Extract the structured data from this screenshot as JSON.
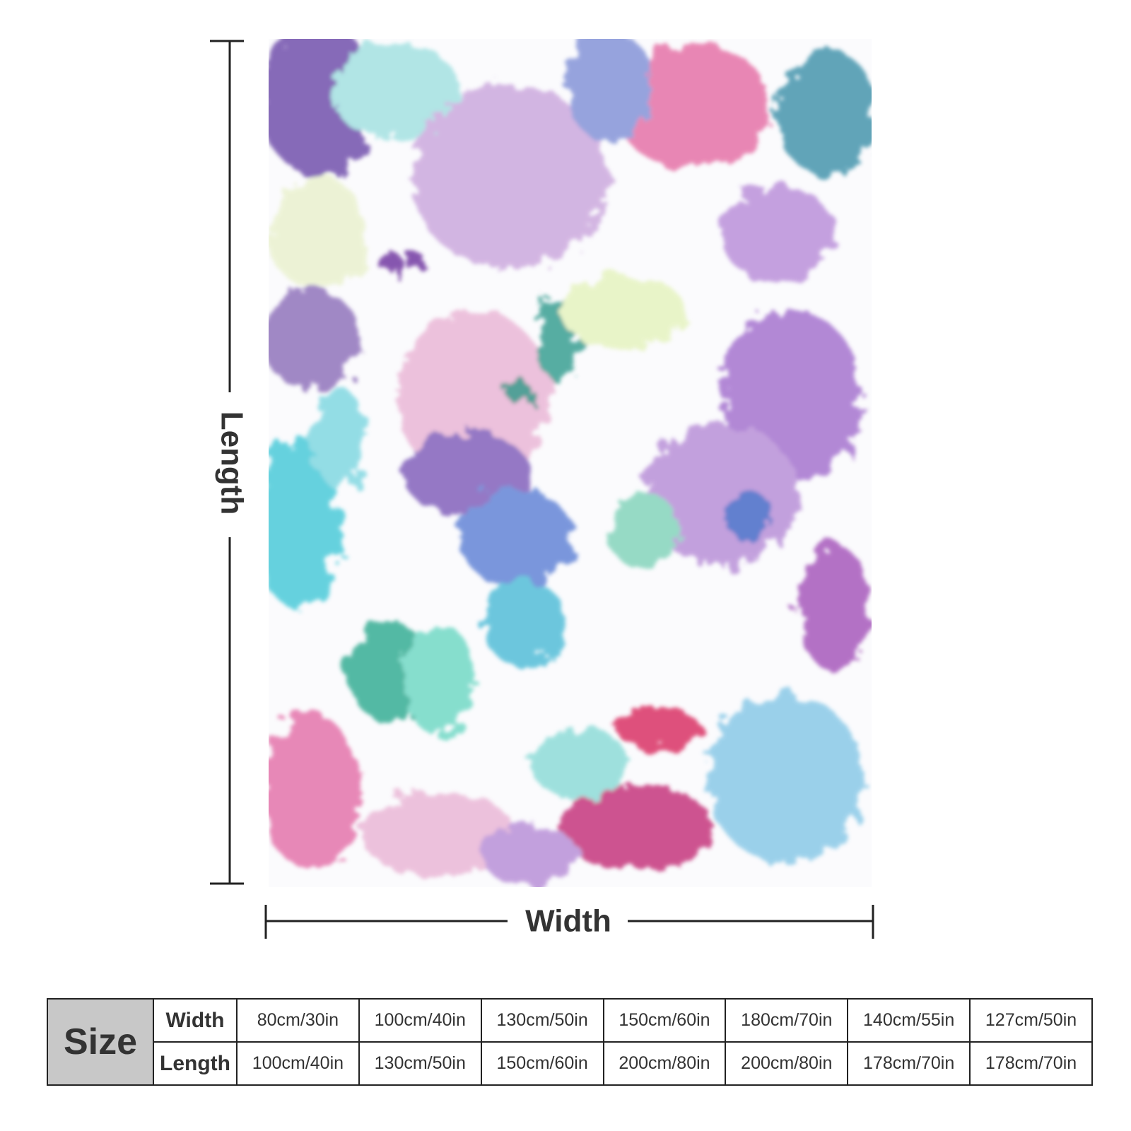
{
  "dimension_labels": {
    "length": "Length",
    "width": "Width"
  },
  "size_table": {
    "header": "Size",
    "rows": [
      {
        "label": "Width",
        "cells": [
          "80cm/30in",
          "100cm/40in",
          "130cm/50in",
          "150cm/60in",
          "180cm/70in",
          "140cm/55in",
          "127cm/50in"
        ]
      },
      {
        "label": "Length",
        "cells": [
          "100cm/40in",
          "130cm/50in",
          "150cm/60in",
          "200cm/80in",
          "200cm/80in",
          "178cm/70in",
          "178cm/70in"
        ]
      }
    ]
  }
}
